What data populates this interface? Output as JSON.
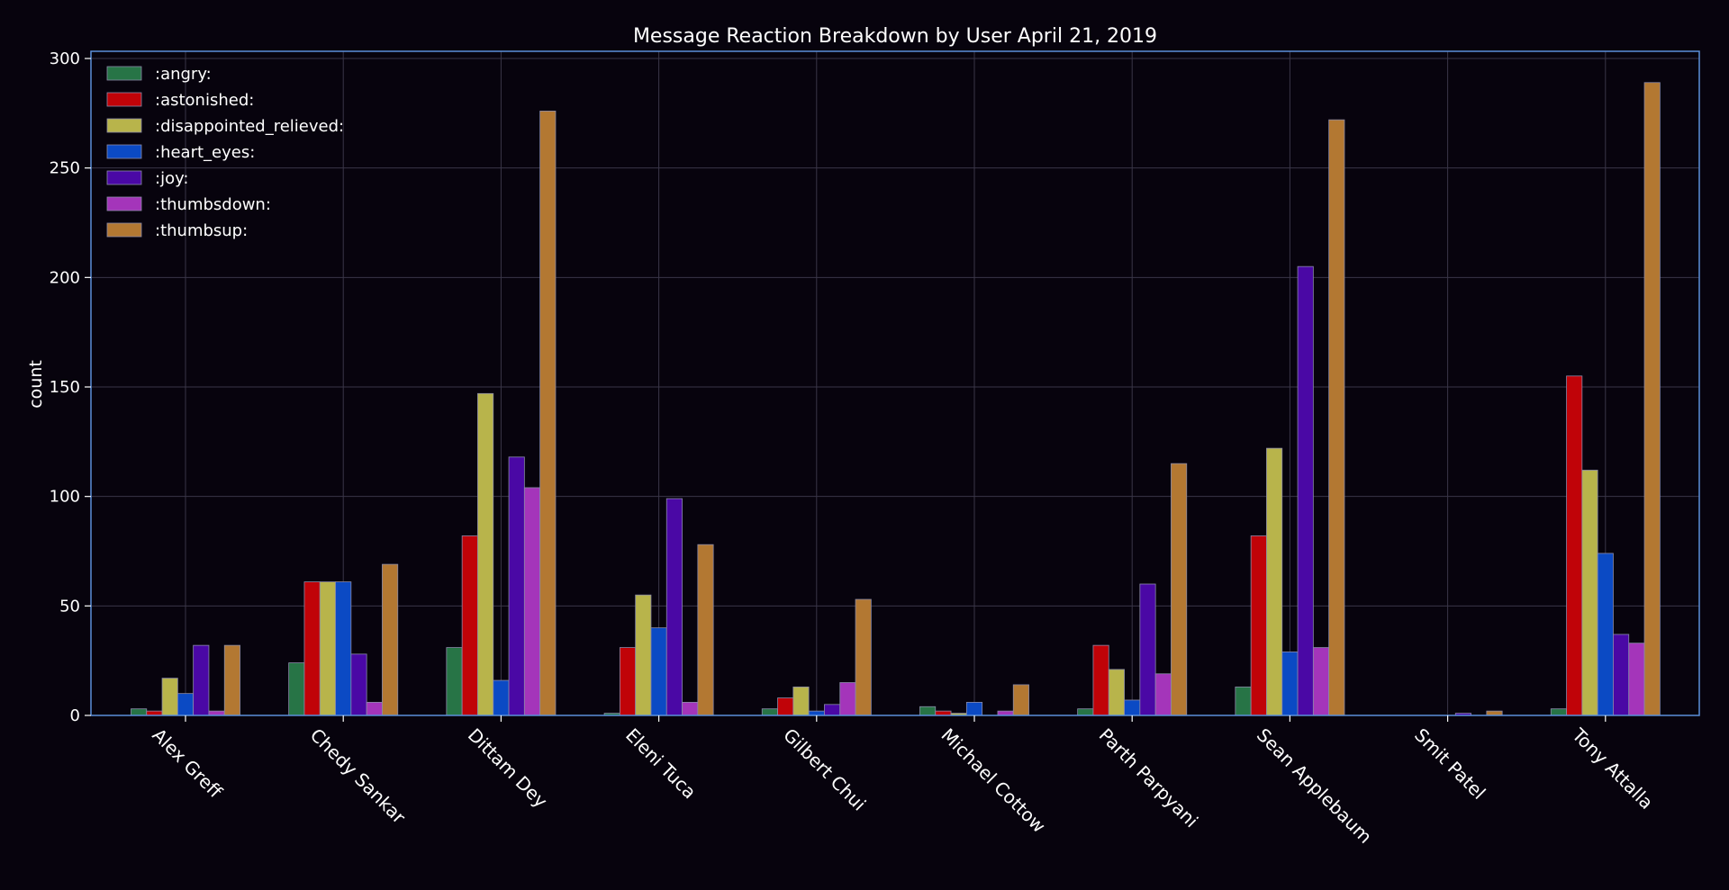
{
  "chart_data": {
    "type": "bar",
    "title": "Message Reaction Breakdown by User April 21, 2019",
    "xlabel": "",
    "ylabel": "count",
    "ylim": [
      0,
      302
    ],
    "yticks": [
      0,
      50,
      100,
      150,
      200,
      250,
      300
    ],
    "grid": true,
    "legend_position": "top-left",
    "categories": [
      "Alex Greff",
      "Chedy Sankar",
      "Dittam Dey",
      "Eleni Tuca",
      "Gilbert Chui",
      "Michael Cottow",
      "Parth Parpyani",
      "Sean Applebaum",
      "Smit Patel",
      "Tony Attalla"
    ],
    "series": [
      {
        "name": ":angry:",
        "color": "#277446",
        "values": [
          3,
          24,
          31,
          1,
          3,
          4,
          3,
          13,
          0,
          3
        ]
      },
      {
        "name": ":astonished:",
        "color": "#c00308",
        "values": [
          2,
          61,
          82,
          31,
          8,
          2,
          32,
          82,
          0,
          155
        ]
      },
      {
        "name": ":disappointed_relieved:",
        "color": "#b8b44b",
        "values": [
          17,
          61,
          147,
          55,
          13,
          1,
          21,
          122,
          0,
          112
        ]
      },
      {
        "name": ":heart_eyes:",
        "color": "#0b4ac4",
        "values": [
          10,
          61,
          16,
          40,
          2,
          6,
          7,
          29,
          0,
          74
        ]
      },
      {
        "name": ":joy:",
        "color": "#4a08a5",
        "values": [
          32,
          28,
          118,
          99,
          5,
          0,
          60,
          205,
          1,
          37
        ]
      },
      {
        "name": ":thumbsdown:",
        "color": "#a435ba",
        "values": [
          2,
          6,
          104,
          6,
          15,
          2,
          19,
          31,
          0,
          33
        ]
      },
      {
        "name": ":thumbsup:",
        "color": "#b37832",
        "values": [
          32,
          69,
          276,
          78,
          53,
          14,
          115,
          272,
          2,
          289
        ]
      }
    ]
  }
}
